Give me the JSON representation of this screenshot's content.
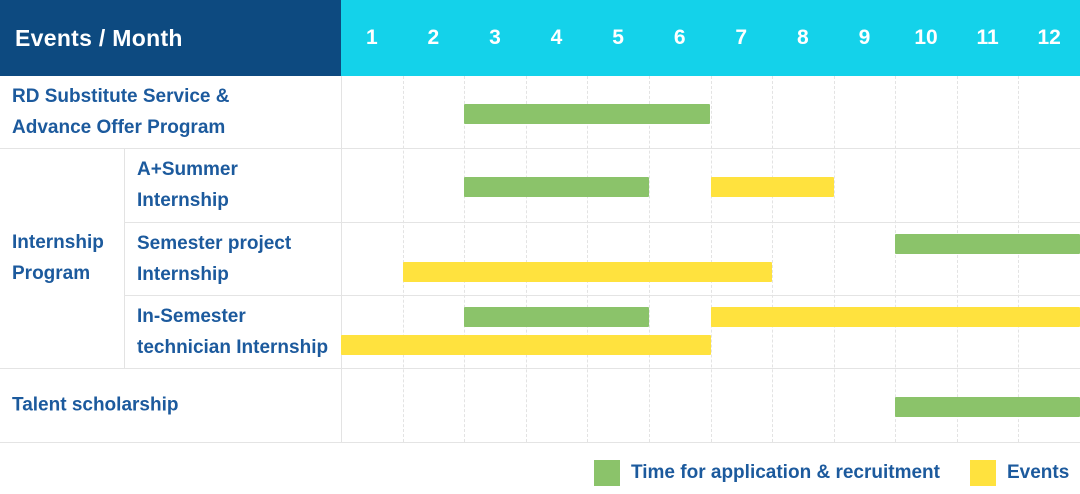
{
  "header": {
    "title": "Events / Month"
  },
  "months": [
    "1",
    "2",
    "3",
    "4",
    "5",
    "6",
    "7",
    "8",
    "9",
    "10",
    "11",
    "12"
  ],
  "legend": {
    "recruitment": "Time for application & recruitment",
    "events": "Events"
  },
  "colors": {
    "navy": "#0d4a80",
    "cyan": "#14d2ea",
    "green": "#8bc36a",
    "yellow": "#ffe23e",
    "label_blue": "#1c5a9d",
    "grid": "#e4e4e4"
  },
  "chart_data": {
    "type": "gantt",
    "title": "Events / Month",
    "xlabel": "Month",
    "x_ticks": [
      1,
      2,
      3,
      4,
      5,
      6,
      7,
      8,
      9,
      10,
      11,
      12
    ],
    "x_range": [
      1,
      12
    ],
    "legend_entries": [
      {
        "label": "Time for application & recruitment",
        "kind": "recruitment",
        "color": "#8bc36a"
      },
      {
        "label": "Events",
        "kind": "event",
        "color": "#ffe23e"
      }
    ],
    "group_label": "Internship Program",
    "group_label_lines": [
      "Internship",
      "Program"
    ],
    "rows": [
      {
        "label": "RD Substitute Service & Advance Offer Program",
        "label_lines": [
          "RD Substitute Service &",
          "Advance Offer Program"
        ],
        "group": null,
        "bars": [
          {
            "kind": "recruitment",
            "start_month": 3,
            "end_month": 6,
            "lane": "center"
          }
        ]
      },
      {
        "label": "A+Summer Internship",
        "label_lines": [
          "A+Summer",
          "Internship"
        ],
        "group": "Internship Program",
        "bars": [
          {
            "kind": "recruitment",
            "start_month": 3,
            "end_month": 5,
            "lane": "center"
          },
          {
            "kind": "event",
            "start_month": 7,
            "end_month": 8,
            "lane": "center"
          }
        ]
      },
      {
        "label": "Semester project Internship",
        "label_lines": [
          "Semester project",
          "Internship"
        ],
        "group": "Internship Program",
        "bars": [
          {
            "kind": "recruitment",
            "start_month": 10,
            "end_month": 12,
            "lane": "top"
          },
          {
            "kind": "event",
            "start_month": 2,
            "end_month": 7,
            "lane": "bottom"
          }
        ]
      },
      {
        "label": "In-Semester technician Internship",
        "label_lines": [
          "In-Semester",
          "technician Internship"
        ],
        "group": "Internship Program",
        "bars": [
          {
            "kind": "recruitment",
            "start_month": 3,
            "end_month": 5,
            "lane": "top"
          },
          {
            "kind": "event",
            "start_month": 7,
            "end_month": 12,
            "lane": "top"
          },
          {
            "kind": "event",
            "start_month": 1,
            "end_month": 6,
            "lane": "bottom"
          }
        ]
      },
      {
        "label": "Talent scholarship",
        "label_lines": [
          "Talent scholarship"
        ],
        "group": null,
        "bars": [
          {
            "kind": "recruitment",
            "start_month": 10,
            "end_month": 12,
            "lane": "center"
          }
        ]
      }
    ]
  }
}
